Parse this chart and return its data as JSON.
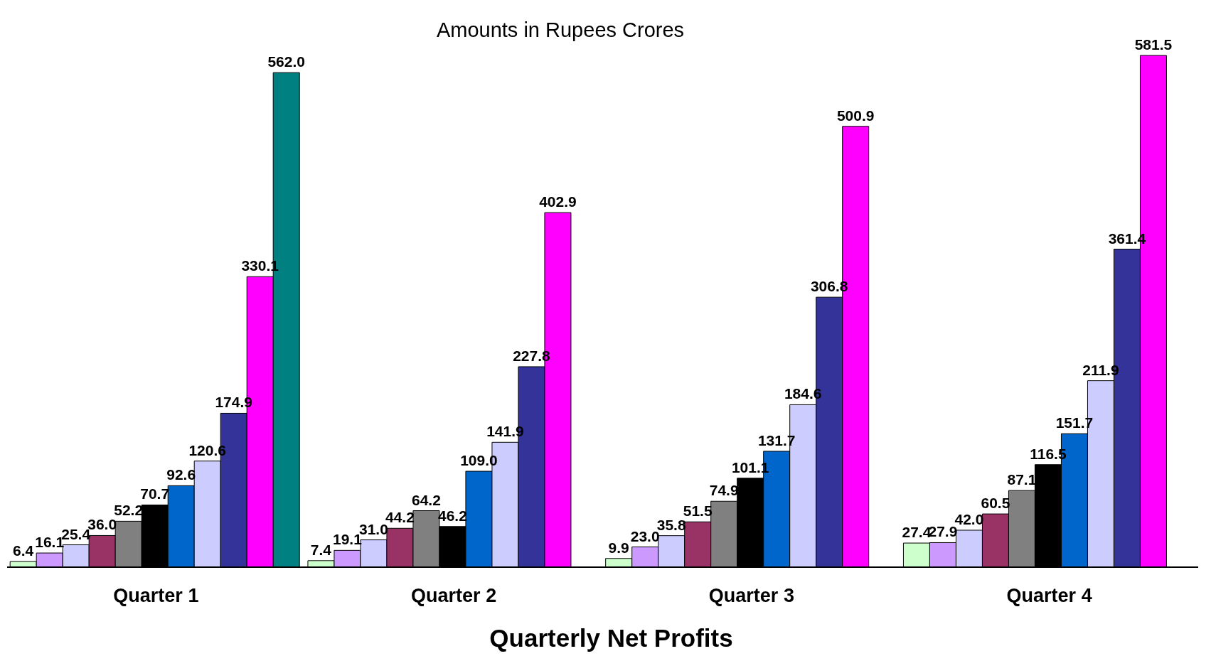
{
  "chart_data": {
    "type": "bar",
    "title": "Amounts in Rupees Crores",
    "xlabel": "Quarterly Net Profits",
    "categories": [
      "Quarter 1",
      "Quarter 2",
      "Quarter 3",
      "Quarter 4"
    ],
    "series": [
      {
        "color": "#ccffcc",
        "values": [
          6.4,
          7.4,
          9.9,
          27.4
        ],
        "value_labels": [
          "6.4",
          "7.4",
          "9.9",
          "27.4"
        ]
      },
      {
        "color": "#cc99ff",
        "values": [
          16.1,
          19.1,
          23.0,
          27.9
        ],
        "value_labels": [
          "16.1",
          "19.1",
          "23.0",
          "27.9"
        ]
      },
      {
        "color": "#ccccff",
        "values": [
          25.4,
          31.0,
          35.8,
          42.0
        ],
        "value_labels": [
          "25.4",
          "31.0",
          "35.8",
          "42.0"
        ]
      },
      {
        "color": "#993366",
        "values": [
          36.0,
          44.2,
          51.5,
          60.5
        ],
        "value_labels": [
          "36.0",
          "44.2",
          "51.5",
          "60.5"
        ]
      },
      {
        "color": "#808080",
        "values": [
          52.2,
          64.2,
          74.9,
          87.1
        ],
        "value_labels": [
          "52.2",
          "64.2",
          "74.9",
          "87.1"
        ]
      },
      {
        "color": "#000000",
        "values": [
          70.7,
          46.2,
          101.1,
          116.5
        ],
        "value_labels": [
          "70.7",
          "46.2",
          "101.1",
          "116.5"
        ]
      },
      {
        "color": "#0066cc",
        "values": [
          92.6,
          109.0,
          131.7,
          151.7
        ],
        "value_labels": [
          "92.6",
          "109.0",
          "131.7",
          "151.7"
        ]
      },
      {
        "color": "#ccccff",
        "values": [
          120.6,
          141.9,
          184.6,
          211.9
        ],
        "value_labels": [
          "120.6",
          "141.9",
          "184.6",
          "211.9"
        ]
      },
      {
        "color": "#333399",
        "values": [
          174.9,
          227.8,
          306.8,
          361.4
        ],
        "value_labels": [
          "174.9",
          "227.8",
          "306.8",
          "361.4"
        ]
      },
      {
        "color": "#ff00ff",
        "values": [
          330.1,
          402.9,
          500.9,
          581.5
        ],
        "value_labels": [
          "330.1",
          "402.9",
          "500.9",
          "581.5"
        ]
      },
      {
        "color": "#008080",
        "values": [
          562.0,
          null,
          null,
          null
        ],
        "value_labels": [
          "562.0",
          null,
          null,
          null
        ]
      }
    ]
  }
}
